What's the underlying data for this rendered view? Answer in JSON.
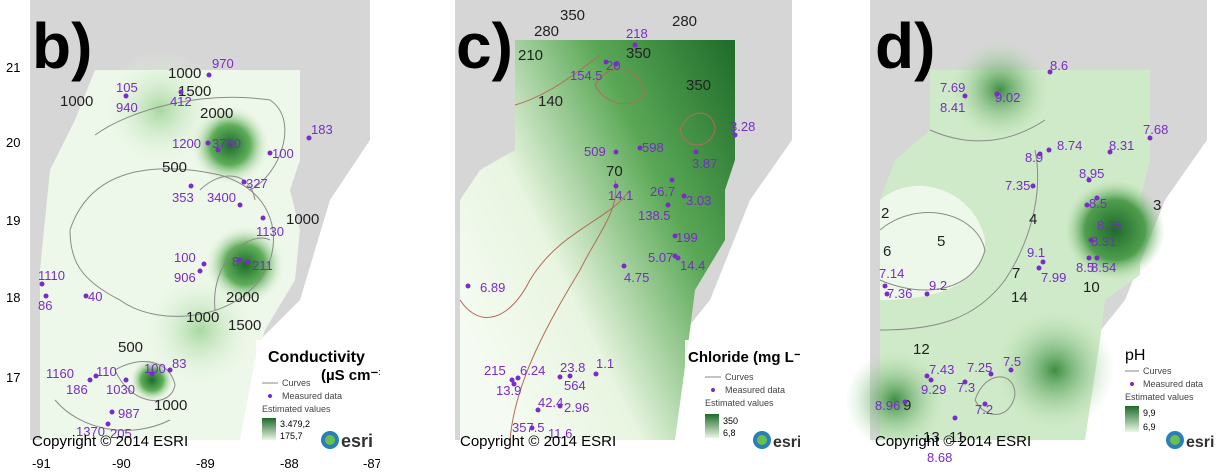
{
  "axis": {
    "y_ticks": [
      "21",
      "20",
      "19",
      "18",
      "17"
    ],
    "x_ticks": [
      "-91",
      "-90",
      "-89",
      "-88",
      "-87"
    ]
  },
  "copyright": "Copyright © 2014 ESRI",
  "esri_logo": "esri",
  "legend_common": {
    "curves": "Curves",
    "measured": "Measured data",
    "estimated": "Estimated values"
  },
  "colors": {
    "dark_green": "#1e6b2a",
    "light_green": "#e8f5e0",
    "purple": "#7a2bc8",
    "land_gray": "#d6d6d6",
    "contour": "#8a8a8a",
    "contour_red": "#b56a5a"
  },
  "panels": [
    {
      "id": "b",
      "letter": "b)",
      "legend_title": "Conductivity",
      "legend_unit": "(µS cm⁻¹)",
      "legend_max": "3.479,2",
      "legend_min": "175,7",
      "contour_labels": [
        {
          "text": "1000"
        },
        {
          "text": "1500"
        },
        {
          "text": "1000"
        },
        {
          "text": "2000"
        },
        {
          "text": "500"
        },
        {
          "text": "1000"
        },
        {
          "text": "2000"
        },
        {
          "text": "1000"
        },
        {
          "text": "1500"
        },
        {
          "text": "500"
        },
        {
          "text": "1000"
        }
      ],
      "points": [
        {
          "text": "970"
        },
        {
          "text": "105"
        },
        {
          "text": "940"
        },
        {
          "text": "412"
        },
        {
          "text": "1200"
        },
        {
          "text": "3780"
        },
        {
          "text": "100"
        },
        {
          "text": "183"
        },
        {
          "text": "327"
        },
        {
          "text": "353"
        },
        {
          "text": "3400"
        },
        {
          "text": "1130"
        },
        {
          "text": "100"
        },
        {
          "text": "906"
        },
        {
          "text": "8"
        },
        {
          "text": "211"
        },
        {
          "text": "1110"
        },
        {
          "text": "86"
        },
        {
          "text": "40"
        },
        {
          "text": "1160"
        },
        {
          "text": "110"
        },
        {
          "text": "186"
        },
        {
          "text": "1030"
        },
        {
          "text": "100"
        },
        {
          "text": "83"
        },
        {
          "text": "987"
        },
        {
          "text": "1370"
        },
        {
          "text": "205"
        }
      ]
    },
    {
      "id": "c",
      "letter": "c)",
      "legend_title": "Chloride (mg L⁻¹)",
      "legend_unit": "",
      "legend_max": "350",
      "legend_min": "6,8",
      "contour_labels": [
        {
          "text": "350"
        },
        {
          "text": "280"
        },
        {
          "text": "280"
        },
        {
          "text": "210"
        },
        {
          "text": "350"
        },
        {
          "text": "350"
        },
        {
          "text": "140"
        },
        {
          "text": "70"
        }
      ],
      "points": [
        {
          "text": "218"
        },
        {
          "text": "154.5"
        },
        {
          "text": "20"
        },
        {
          "text": "3.28"
        },
        {
          "text": "509"
        },
        {
          "text": "598"
        },
        {
          "text": "3.87"
        },
        {
          "text": "14.1"
        },
        {
          "text": "26.7"
        },
        {
          "text": "138.5"
        },
        {
          "text": "3.03"
        },
        {
          "text": "199"
        },
        {
          "text": "5.07"
        },
        {
          "text": "14.4"
        },
        {
          "text": "4.75"
        },
        {
          "text": "6.89"
        },
        {
          "text": "215"
        },
        {
          "text": "6.24"
        },
        {
          "text": "23.8"
        },
        {
          "text": "1.1"
        },
        {
          "text": "13.9"
        },
        {
          "text": "564"
        },
        {
          "text": "42.4"
        },
        {
          "text": "2.96"
        },
        {
          "text": "357.5"
        },
        {
          "text": "11.6"
        }
      ]
    },
    {
      "id": "d",
      "letter": "d)",
      "legend_title": "pH",
      "legend_unit": "",
      "legend_max": "9,9",
      "legend_min": "6,9",
      "contour_labels": [
        {
          "text": "2"
        },
        {
          "text": "6"
        },
        {
          "text": "5"
        },
        {
          "text": "4"
        },
        {
          "text": "3"
        },
        {
          "text": "7"
        },
        {
          "text": "14"
        },
        {
          "text": "10"
        },
        {
          "text": "12"
        },
        {
          "text": "9"
        },
        {
          "text": "13"
        },
        {
          "text": "11"
        }
      ],
      "points": [
        {
          "text": "8.6"
        },
        {
          "text": "7.69"
        },
        {
          "text": "9.02"
        },
        {
          "text": "8.41"
        },
        {
          "text": "7.68"
        },
        {
          "text": "8.74"
        },
        {
          "text": "8.31"
        },
        {
          "text": "8.9"
        },
        {
          "text": "7.35"
        },
        {
          "text": "8.95"
        },
        {
          "text": "8.5"
        },
        {
          "text": "8.75"
        },
        {
          "text": "8.31"
        },
        {
          "text": "9.1"
        },
        {
          "text": "7.99"
        },
        {
          "text": "8.5"
        },
        {
          "text": "8.54"
        },
        {
          "text": "7.14"
        },
        {
          "text": "7.36"
        },
        {
          "text": "9.2"
        },
        {
          "text": "8.96"
        },
        {
          "text": "7.43"
        },
        {
          "text": "7.25"
        },
        {
          "text": "7.5"
        },
        {
          "text": "9.29"
        },
        {
          "text": "7.3"
        },
        {
          "text": "7.2"
        },
        {
          "text": "8.68"
        }
      ]
    }
  ]
}
